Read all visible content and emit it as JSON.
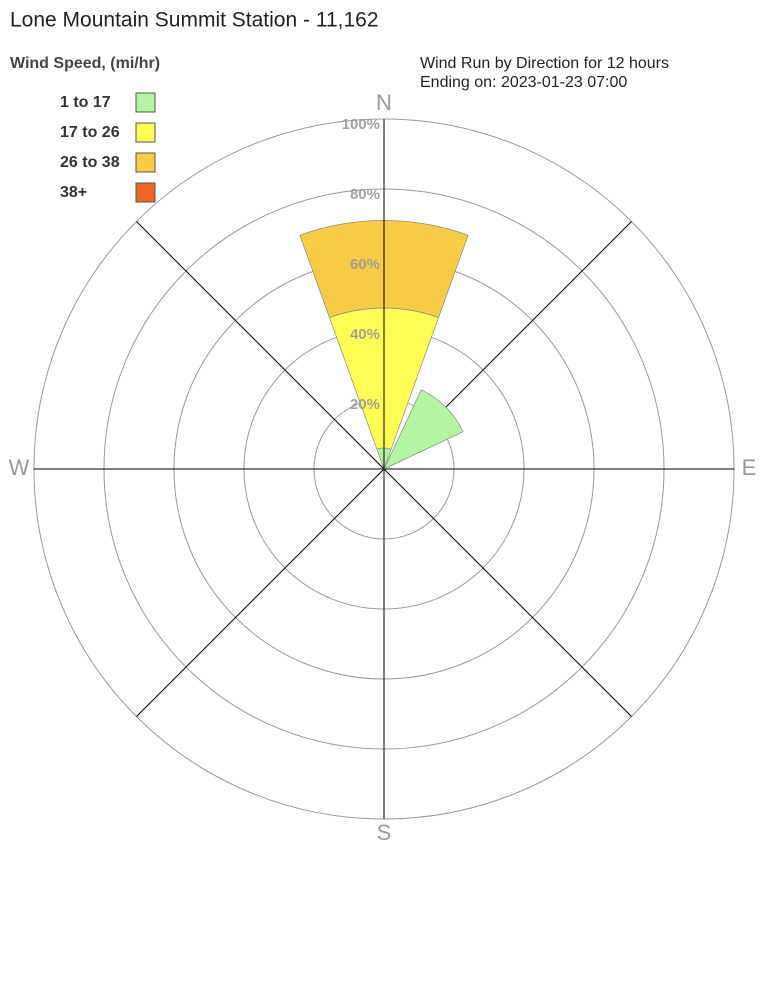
{
  "chart_data": {
    "type": "wind-rose",
    "title": "Lone Mountain Summit Station - 11,162",
    "legend_title": "Wind Speed, (mi/hr)",
    "subtitle": [
      "Wind Run by Direction for 12 hours",
      "Ending on: 2023-01-23 07:00"
    ],
    "categories": [
      "N",
      null,
      "E",
      null,
      "S",
      null,
      "W",
      null
    ],
    "series": [
      {
        "name": "1 to 17",
        "color": "#b3f5a3",
        "values": [
          6,
          25,
          0,
          0,
          0,
          0,
          0,
          0
        ]
      },
      {
        "name": "17 to 26",
        "color": "#ffff55",
        "values": [
          40,
          0,
          0,
          0,
          0,
          0,
          0,
          0
        ]
      },
      {
        "name": "26 to 38",
        "color": "#f7cc47",
        "values": [
          25,
          0,
          0,
          0,
          0,
          0,
          0,
          0
        ]
      },
      {
        "name": "38+",
        "color": "#ee6622",
        "values": [
          0,
          0,
          0,
          0,
          0,
          0,
          0,
          0
        ]
      }
    ],
    "rlim": [
      0,
      100
    ],
    "rticks": [
      {
        "value": 20,
        "label": "20%"
      },
      {
        "value": 40,
        "label": "40%"
      },
      {
        "value": 60,
        "label": "60%"
      },
      {
        "value": 80,
        "label": "80%"
      },
      {
        "value": 100,
        "label": "100%"
      }
    ],
    "grid": true
  }
}
